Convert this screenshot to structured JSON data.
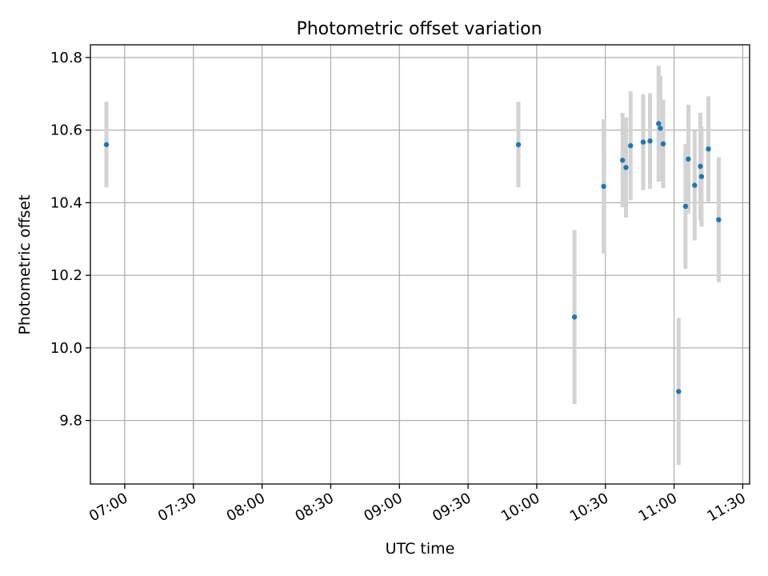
{
  "chart_data": {
    "type": "scatter",
    "title": "Photometric offset variation",
    "xlabel": "UTC time",
    "ylabel": "Photometric offset",
    "x_unit": "time of day (HH:MM, UTC)",
    "xlim": [
      "06:45",
      "11:33"
    ],
    "ylim": [
      9.625,
      10.835
    ],
    "x_ticks": [
      "07:00",
      "07:30",
      "08:00",
      "08:30",
      "09:00",
      "09:30",
      "10:00",
      "10:30",
      "11:00",
      "11:30"
    ],
    "y_ticks": [
      "9.8",
      "10.0",
      "10.2",
      "10.4",
      "10.6",
      "10.8"
    ],
    "grid": true,
    "legend": "none",
    "colors": {
      "point": "#1f77b4",
      "errorbar": "#d3d3d3",
      "grid": "#b0b0b0",
      "axes": "#000000"
    },
    "points": [
      {
        "x": "06:52:00",
        "y": 10.56,
        "err": 0.118
      },
      {
        "x": "09:52:00",
        "y": 10.56,
        "err": 0.118
      },
      {
        "x": "10:16:30",
        "y": 10.085,
        "err": 0.24
      },
      {
        "x": "10:29:15",
        "y": 10.445,
        "err": 0.185
      },
      {
        "x": "10:37:30",
        "y": 10.517,
        "err": 0.13
      },
      {
        "x": "10:39:00",
        "y": 10.497,
        "err": 0.138
      },
      {
        "x": "10:41:00",
        "y": 10.557,
        "err": 0.15
      },
      {
        "x": "10:46:30",
        "y": 10.567,
        "err": 0.132
      },
      {
        "x": "10:49:30",
        "y": 10.57,
        "err": 0.132
      },
      {
        "x": "10:53:15",
        "y": 10.618,
        "err": 0.16
      },
      {
        "x": "10:54:00",
        "y": 10.605,
        "err": 0.145
      },
      {
        "x": "10:55:15",
        "y": 10.562,
        "err": 0.122
      },
      {
        "x": "11:02:00",
        "y": 9.88,
        "err": 0.202
      },
      {
        "x": "11:05:00",
        "y": 10.39,
        "err": 0.172
      },
      {
        "x": "11:06:15",
        "y": 10.52,
        "err": 0.15
      },
      {
        "x": "11:09:00",
        "y": 10.448,
        "err": 0.152
      },
      {
        "x": "11:11:30",
        "y": 10.5,
        "err": 0.148
      },
      {
        "x": "11:12:00",
        "y": 10.472,
        "err": 0.138
      },
      {
        "x": "11:15:00",
        "y": 10.548,
        "err": 0.145
      },
      {
        "x": "11:19:30",
        "y": 10.353,
        "err": 0.172
      }
    ]
  }
}
